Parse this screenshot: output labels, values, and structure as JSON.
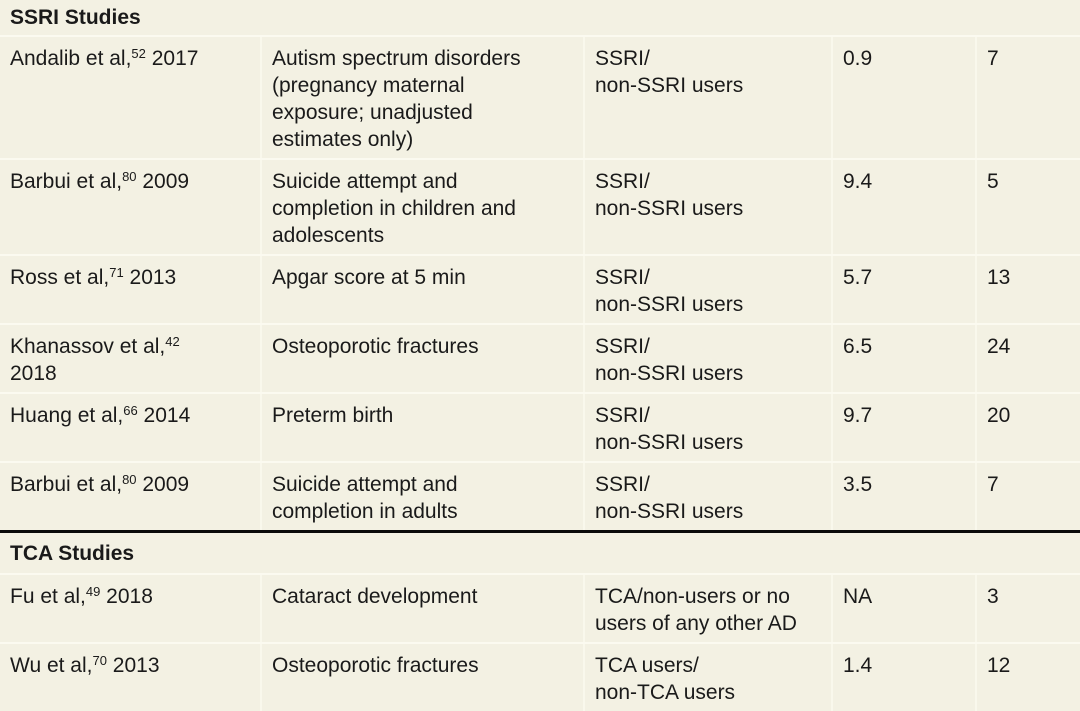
{
  "colors": {
    "background": "#f3f1e3",
    "row_divider": "#fbfaf0",
    "column_divider": "#f9f8ec",
    "text": "#1a1a1a",
    "section_rule": "#0a0a0a"
  },
  "sections": [
    {
      "header": "SSRI Studies",
      "rows": [
        {
          "study": "Andalib et al,",
          "ref": "52",
          "year": " 2017",
          "outcome": "Autism spectrum disorders\n(pregnancy maternal\nexposure; unadjusted\nestimates only)",
          "comparison": "SSRI/\nnon-SSRI users",
          "estimate": "0.9",
          "count": "7"
        },
        {
          "study": "Barbui et al,",
          "ref": "80",
          "year": " 2009",
          "outcome": "Suicide attempt and\ncompletion in children and\nadolescents",
          "comparison": "SSRI/\nnon-SSRI users",
          "estimate": "9.4",
          "count": "5"
        },
        {
          "study": "Ross et al,",
          "ref": "71",
          "year": " 2013",
          "outcome": "Apgar score at 5 min",
          "comparison": "SSRI/\nnon-SSRI users",
          "estimate": "5.7",
          "count": "13"
        },
        {
          "study": "Khanassov et al,",
          "ref": "42",
          "year": "\n2018",
          "outcome": "Osteoporotic fractures",
          "comparison": "SSRI/\nnon-SSRI users",
          "estimate": "6.5",
          "count": "24"
        },
        {
          "study": "Huang et al,",
          "ref": "66",
          "year": " 2014",
          "outcome": "Preterm birth",
          "comparison": "SSRI/\nnon-SSRI users",
          "estimate": "9.7",
          "count": "20"
        },
        {
          "study": "Barbui et al,",
          "ref": "80",
          "year": " 2009",
          "outcome": "Suicide attempt and\ncompletion in adults",
          "comparison": "SSRI/\nnon-SSRI users",
          "estimate": "3.5",
          "count": "7"
        }
      ]
    },
    {
      "header": "TCA Studies",
      "rows": [
        {
          "study": "Fu et al,",
          "ref": "49",
          "year": " 2018",
          "outcome": "Cataract development",
          "comparison": "TCA/non-users or no\nusers of any other AD",
          "estimate": "NA",
          "count": "3"
        },
        {
          "study": "Wu et al,",
          "ref": "70",
          "year": " 2013",
          "outcome": "Osteoporotic fractures",
          "comparison": "TCA users/\nnon-TCA users",
          "estimate": "1.4",
          "count": "12"
        }
      ]
    }
  ]
}
